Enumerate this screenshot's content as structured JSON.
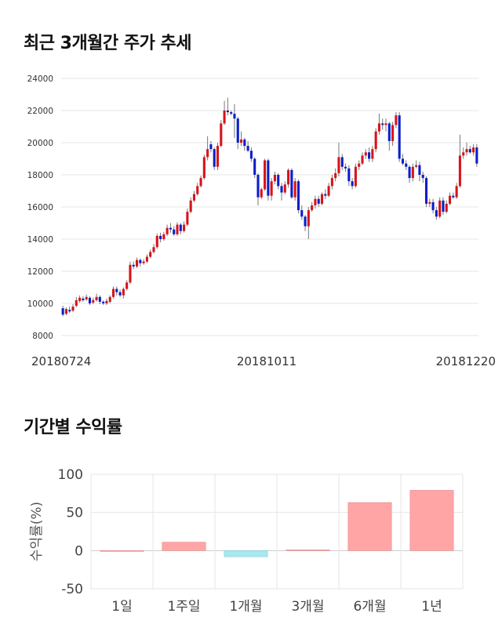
{
  "charts_titles": {
    "candle": "최근 3개월간 주가 추세",
    "returns": "기간별 수익률"
  },
  "chart_data": [
    {
      "type": "candlestick",
      "title": "최근 3개월간 주가 추세",
      "y_ticks": [
        "8000",
        "10000",
        "12000",
        "14000",
        "16000",
        "18000",
        "20000",
        "22000",
        "24000"
      ],
      "ylim": [
        8000,
        24000
      ],
      "x_tick_labels": [
        "20180724",
        "20181011",
        "20181220"
      ],
      "grid": true,
      "colors": {
        "up": "#d7141a",
        "down": "#0a1fc8",
        "wick": "#777777"
      },
      "candles": [
        [
          9700,
          9300,
          9850,
          9200
        ],
        [
          9350,
          9650,
          9750,
          9250
        ],
        [
          9600,
          9500,
          9800,
          9400
        ],
        [
          9550,
          9800,
          9950,
          9450
        ],
        [
          9850,
          10200,
          10400,
          9750
        ],
        [
          10150,
          10350,
          10500,
          10050
        ],
        [
          10300,
          10200,
          10450,
          10100
        ],
        [
          10250,
          10400,
          10550,
          10150
        ],
        [
          10350,
          10000,
          10450,
          9900
        ],
        [
          10050,
          10200,
          10350,
          9950
        ],
        [
          10200,
          10400,
          10600,
          10100
        ],
        [
          10400,
          10100,
          10500,
          9950
        ],
        [
          10100,
          10000,
          10200,
          9900
        ],
        [
          10000,
          10150,
          10300,
          9900
        ],
        [
          10100,
          10400,
          10500,
          10000
        ],
        [
          10400,
          10900,
          11050,
          10300
        ],
        [
          10900,
          10700,
          11050,
          10500
        ],
        [
          10700,
          10500,
          10850,
          10400
        ],
        [
          10500,
          10900,
          11000,
          10300
        ],
        [
          10900,
          11300,
          11450,
          10800
        ],
        [
          11300,
          12400,
          12600,
          11200
        ],
        [
          12400,
          12300,
          12600,
          12150
        ],
        [
          12300,
          12700,
          12850,
          12200
        ],
        [
          12700,
          12500,
          12800,
          12300
        ],
        [
          12500,
          12600,
          12750,
          12400
        ],
        [
          12600,
          12900,
          13050,
          12500
        ],
        [
          12900,
          13200,
          13350,
          12800
        ],
        [
          13200,
          13500,
          13700,
          13100
        ],
        [
          13500,
          14200,
          14350,
          13400
        ],
        [
          14200,
          14000,
          14400,
          13800
        ],
        [
          14000,
          14300,
          14450,
          13900
        ],
        [
          14300,
          14700,
          14900,
          14200
        ],
        [
          14700,
          14600,
          15000,
          14400
        ],
        [
          14600,
          14300,
          14800,
          14200
        ],
        [
          14300,
          14900,
          15050,
          14200
        ],
        [
          14900,
          14500,
          15000,
          14300
        ],
        [
          14500,
          14900,
          15100,
          14400
        ],
        [
          14900,
          15700,
          15900,
          14800
        ],
        [
          15700,
          16400,
          16600,
          15600
        ],
        [
          16400,
          16800,
          17000,
          16300
        ],
        [
          16800,
          17300,
          17500,
          16700
        ],
        [
          17300,
          17800,
          17950,
          17200
        ],
        [
          17800,
          19100,
          19250,
          17700
        ],
        [
          19100,
          19600,
          20400,
          18900
        ],
        [
          19900,
          19600,
          20100,
          19400
        ],
        [
          19600,
          18500,
          19700,
          18300
        ],
        [
          18500,
          19800,
          20000,
          18300
        ],
        [
          19800,
          21200,
          21400,
          19700
        ],
        [
          21200,
          22000,
          22600,
          21100
        ],
        [
          22000,
          21900,
          22800,
          21700
        ],
        [
          21900,
          21800,
          22000,
          21700
        ],
        [
          21800,
          21500,
          22400,
          20300
        ],
        [
          21500,
          20000,
          21600,
          19600
        ],
        [
          20000,
          20200,
          20700,
          19800
        ],
        [
          20200,
          19800,
          20300,
          19500
        ],
        [
          19800,
          19500,
          20100,
          19400
        ],
        [
          19500,
          19000,
          19700,
          18800
        ],
        [
          19000,
          18000,
          19100,
          17800
        ],
        [
          18000,
          16600,
          18100,
          16100
        ],
        [
          16600,
          17100,
          17200,
          16500
        ],
        [
          17100,
          18900,
          19000,
          17000
        ],
        [
          18900,
          16700,
          19000,
          16400
        ],
        [
          16700,
          17600,
          17800,
          16400
        ],
        [
          17600,
          18000,
          18200,
          17400
        ],
        [
          18000,
          17300,
          18100,
          17100
        ],
        [
          17300,
          16900,
          17500,
          16400
        ],
        [
          16900,
          17400,
          17600,
          16800
        ],
        [
          17400,
          18300,
          18400,
          17200
        ],
        [
          18300,
          16600,
          18400,
          16500
        ],
        [
          16600,
          17600,
          17800,
          16400
        ],
        [
          17600,
          15800,
          17700,
          15600
        ],
        [
          15800,
          15400,
          16100,
          15200
        ],
        [
          15400,
          14800,
          15500,
          14500
        ],
        [
          14800,
          15800,
          16000,
          14000
        ],
        [
          15800,
          16100,
          16300,
          15700
        ],
        [
          16100,
          16500,
          16700,
          15900
        ],
        [
          16500,
          16200,
          16700,
          16000
        ],
        [
          16200,
          16800,
          16900,
          16100
        ],
        [
          16800,
          16700,
          17100,
          16500
        ],
        [
          16700,
          17300,
          17500,
          16600
        ],
        [
          17300,
          17800,
          18000,
          17100
        ],
        [
          17800,
          18100,
          18400,
          17600
        ],
        [
          18100,
          19100,
          20000,
          17900
        ],
        [
          19100,
          18500,
          19300,
          18300
        ],
        [
          18500,
          18400,
          18700,
          18200
        ],
        [
          18400,
          17600,
          18600,
          17300
        ],
        [
          17600,
          17300,
          17800,
          17100
        ],
        [
          17300,
          18500,
          18700,
          17200
        ],
        [
          18500,
          18700,
          18900,
          18300
        ],
        [
          18700,
          19200,
          19400,
          18600
        ],
        [
          19200,
          19400,
          19600,
          19000
        ],
        [
          19400,
          19000,
          19700,
          18800
        ],
        [
          19000,
          19600,
          19800,
          18800
        ],
        [
          19600,
          20700,
          20900,
          19400
        ],
        [
          20700,
          21200,
          21800,
          20500
        ],
        [
          21200,
          21100,
          21500,
          20800
        ],
        [
          21100,
          21200,
          21500,
          20700
        ],
        [
          21200,
          20100,
          21300,
          19500
        ],
        [
          20100,
          21100,
          21300,
          19800
        ],
        [
          21100,
          21700,
          21900,
          20900
        ],
        [
          21700,
          19000,
          21900,
          18800
        ],
        [
          19000,
          18700,
          19300,
          18600
        ],
        [
          18700,
          18500,
          18900,
          18300
        ],
        [
          18500,
          17800,
          18600,
          17500
        ],
        [
          17800,
          18500,
          18700,
          17600
        ],
        [
          18500,
          18600,
          18900,
          18400
        ],
        [
          18600,
          18000,
          18800,
          17600
        ],
        [
          18000,
          17800,
          18200,
          17500
        ],
        [
          17800,
          16200,
          17900,
          16000
        ],
        [
          16200,
          16300,
          16500,
          16000
        ],
        [
          16300,
          15800,
          16500,
          15600
        ],
        [
          15800,
          15400,
          16000,
          15200
        ],
        [
          15400,
          16400,
          16600,
          15300
        ],
        [
          16400,
          15700,
          16600,
          15500
        ],
        [
          15700,
          16200,
          16400,
          15600
        ],
        [
          16200,
          16700,
          16900,
          16100
        ],
        [
          16700,
          16600,
          16900,
          16500
        ],
        [
          16600,
          17300,
          17500,
          16500
        ],
        [
          17300,
          19200,
          20500,
          17200
        ],
        [
          19200,
          19400,
          19700,
          19000
        ],
        [
          19400,
          19600,
          20000,
          19200
        ],
        [
          19600,
          19400,
          19800,
          19300
        ],
        [
          19400,
          19700,
          19900,
          19200
        ],
        [
          19700,
          18700,
          19900,
          18500
        ]
      ]
    },
    {
      "type": "bar",
      "title": "기간별 수익률",
      "ylabel": "수익률(%)",
      "categories": [
        "1일",
        "1주일",
        "1개월",
        "3개월",
        "6개월",
        "1년"
      ],
      "values": [
        0,
        11,
        -8,
        1,
        63,
        79
      ],
      "ylim": [
        -50,
        100
      ],
      "y_ticks": [
        "-50",
        "0",
        "50",
        "100"
      ],
      "grid": true,
      "colors": {
        "positive": "#ffa5a5",
        "negative": "#a8e8f0"
      }
    }
  ]
}
